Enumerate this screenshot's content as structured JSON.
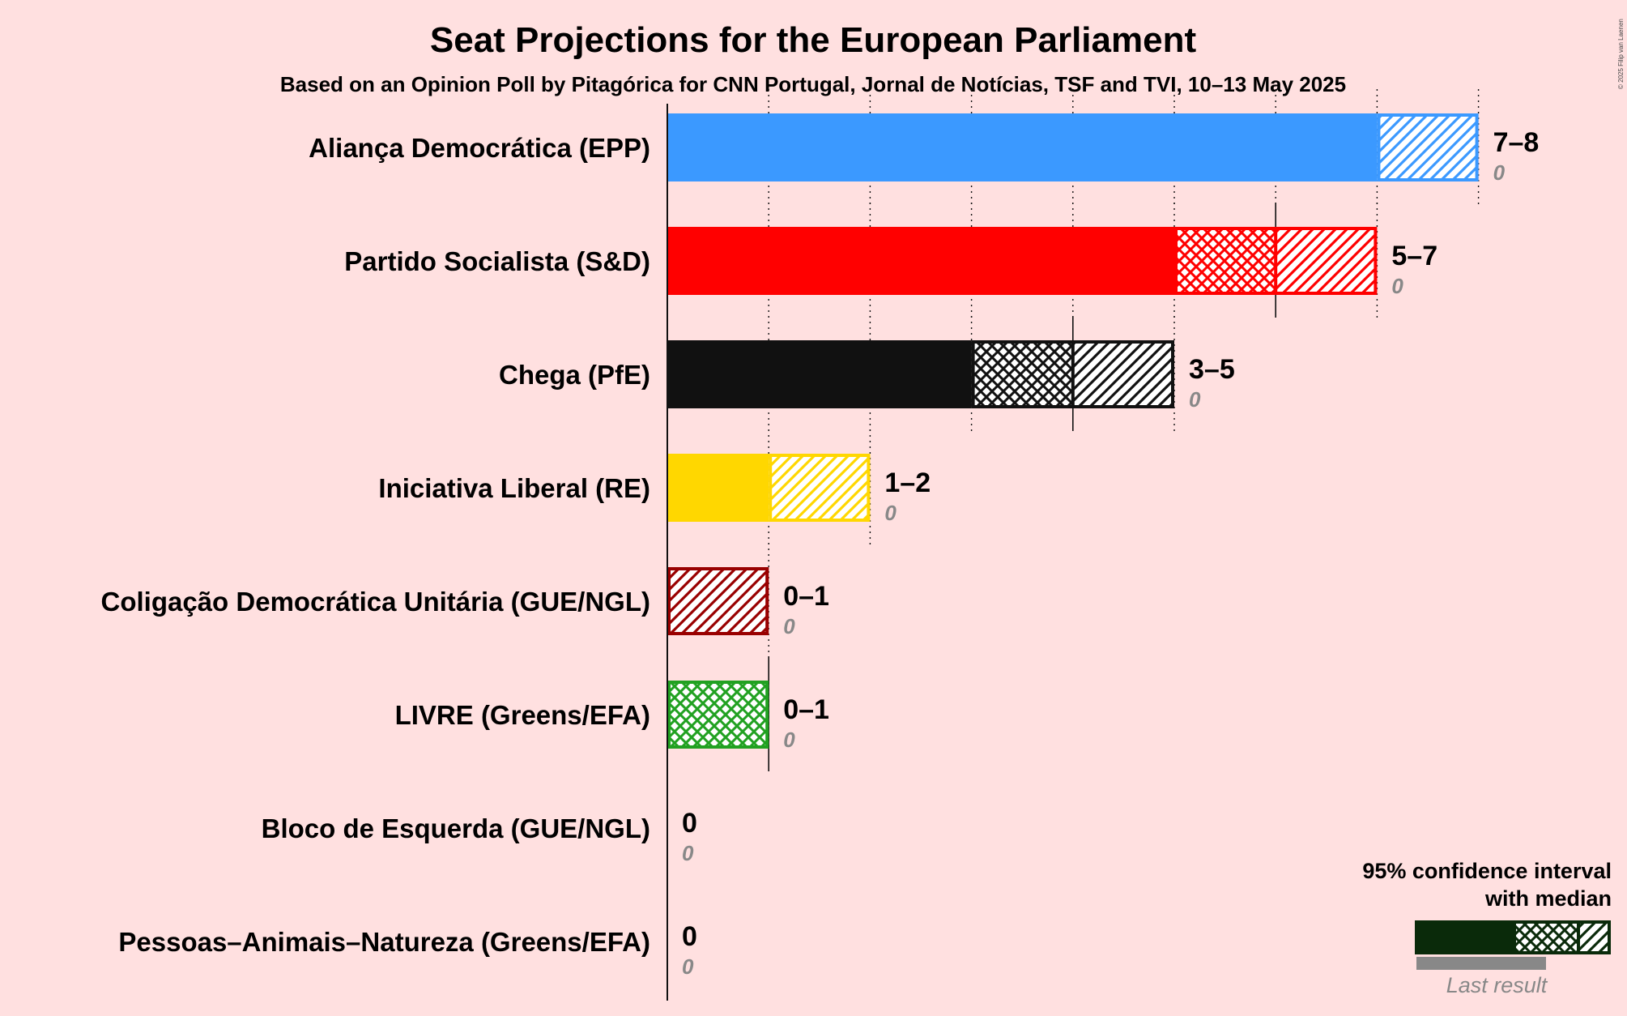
{
  "title": "Seat Projections for the European Parliament",
  "subtitle": "Based on an Opinion Poll by Pitagórica for CNN Portugal, Jornal de Notícias, TSF and TVI, 10–13 May 2025",
  "copyright": "© 2025 Filip van Laenen",
  "legend": {
    "line1": "95% confidence interval",
    "line2": "with median",
    "last_result": "Last result"
  },
  "chart_data": {
    "type": "bar",
    "orientation": "horizontal",
    "x_unit": "seats",
    "xlim": [
      0,
      8
    ],
    "gridlines": [
      1,
      2,
      3,
      4,
      5,
      6,
      7,
      8
    ],
    "parties": [
      {
        "name": "Aliança Democrática (EPP)",
        "color": "#3b99ff",
        "low": 7,
        "median": 7,
        "high": 8,
        "range_label": "7–8",
        "last": 0,
        "last_label": "0"
      },
      {
        "name": "Partido Socialista (S&D)",
        "color": "#ff0000",
        "low": 5,
        "median": 6,
        "high": 7,
        "range_label": "5–7",
        "last": 0,
        "last_label": "0"
      },
      {
        "name": "Chega (PfE)",
        "color": "#111111",
        "low": 3,
        "median": 4,
        "high": 5,
        "range_label": "3–5",
        "last": 0,
        "last_label": "0"
      },
      {
        "name": "Iniciativa Liberal (RE)",
        "color": "#ffd700",
        "low": 1,
        "median": 1,
        "high": 2,
        "range_label": "1–2",
        "last": 0,
        "last_label": "0"
      },
      {
        "name": "Coligação Democrática Unitária (GUE/NGL)",
        "color": "#990000",
        "low": 0,
        "median": 0,
        "high": 1,
        "range_label": "0–1",
        "last": 0,
        "last_label": "0"
      },
      {
        "name": "LIVRE (Greens/EFA)",
        "color": "#21a121",
        "low": 0,
        "median": 1,
        "high": 1,
        "range_label": "0–1",
        "last": 0,
        "last_label": "0"
      },
      {
        "name": "Bloco de Esquerda (GUE/NGL)",
        "color": "#cc0000",
        "low": 0,
        "median": 0,
        "high": 0,
        "range_label": "0",
        "last": 0,
        "last_label": "0"
      },
      {
        "name": "Pessoas–Animais–Natureza (Greens/EFA)",
        "color": "#008080",
        "low": 0,
        "median": 0,
        "high": 0,
        "range_label": "0",
        "last": 0,
        "last_label": "0"
      }
    ]
  }
}
